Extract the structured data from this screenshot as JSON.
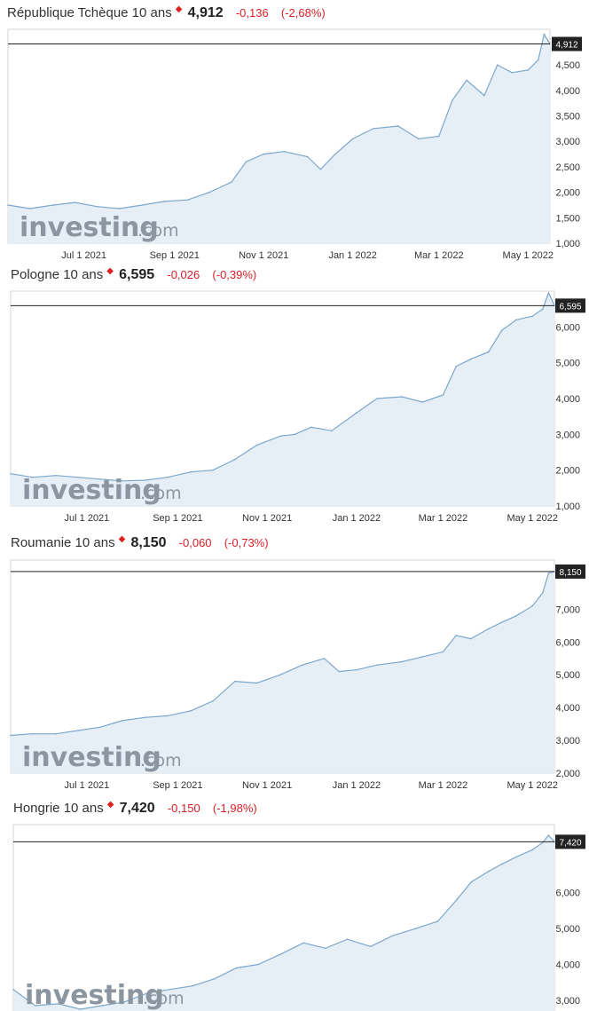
{
  "watermark": {
    "brand": "investing",
    "suffix": ".com"
  },
  "panels": [
    {
      "name": "République Tchèque 10 ans",
      "price": "4,912",
      "change": "-0,136",
      "change_pct": "(-2,68%)",
      "colors": {
        "line": "#7da7cc",
        "fill": "#e6eef6",
        "down": "#d91f26",
        "tag": "#222222"
      },
      "chart_data": {
        "type": "area",
        "x_ticks": [
          "Jul 1 2021",
          "Sep 1 2021",
          "Nov 1 2021",
          "Jan 1 2022",
          "Mar 1 2022",
          "May 1 2022"
        ],
        "y_ticks": [
          "1,000",
          "1,500",
          "2,000",
          "2,500",
          "3,000",
          "3,500",
          "4,000",
          "4,500"
        ],
        "ylim": [
          1.0,
          5.2
        ],
        "last_value": 4.912,
        "last_label": "4,912",
        "series": [
          {
            "x": [
              "2021-05-10",
              "2021-05-25",
              "2021-06-10",
              "2021-06-25",
              "2021-07-10",
              "2021-07-25",
              "2021-08-10",
              "2021-08-25",
              "2021-09-10",
              "2021-09-25",
              "2021-10-10",
              "2021-10-20",
              "2021-11-01",
              "2021-11-15",
              "2021-12-01",
              "2021-12-10",
              "2021-12-20",
              "2022-01-01",
              "2022-01-15",
              "2022-02-01",
              "2022-02-15",
              "2022-03-01",
              "2022-03-10",
              "2022-03-20",
              "2022-04-01",
              "2022-04-10",
              "2022-04-20",
              "2022-05-01",
              "2022-05-08",
              "2022-05-12",
              "2022-05-16"
            ],
            "y": [
              1.75,
              1.68,
              1.75,
              1.8,
              1.72,
              1.68,
              1.75,
              1.82,
              1.85,
              2.0,
              2.2,
              2.6,
              2.75,
              2.8,
              2.7,
              2.45,
              2.75,
              3.05,
              3.25,
              3.3,
              3.05,
              3.1,
              3.8,
              4.2,
              3.9,
              4.5,
              4.35,
              4.4,
              4.6,
              5.1,
              4.912
            ]
          }
        ]
      }
    },
    {
      "name": "Pologne 10 ans",
      "price": "6,595",
      "change": "-0,026",
      "change_pct": "(-0,39%)",
      "colors": {
        "line": "#7da7cc",
        "fill": "#e6eef6",
        "down": "#d91f26",
        "tag": "#222222"
      },
      "chart_data": {
        "type": "area",
        "x_ticks": [
          "Jul 1 2021",
          "Sep 1 2021",
          "Nov 1 2021",
          "Jan 1 2022",
          "Mar 1 2022",
          "May 1 2022"
        ],
        "y_ticks": [
          "1,000",
          "2,000",
          "3,000",
          "4,000",
          "5,000",
          "6,000"
        ],
        "ylim": [
          1.0,
          7.0
        ],
        "last_value": 6.595,
        "last_label": "6,595",
        "series": [
          {
            "x": [
              "2021-05-10",
              "2021-05-25",
              "2021-06-10",
              "2021-06-25",
              "2021-07-10",
              "2021-07-25",
              "2021-08-10",
              "2021-08-25",
              "2021-09-10",
              "2021-09-25",
              "2021-10-10",
              "2021-10-25",
              "2021-11-10",
              "2021-11-20",
              "2021-12-01",
              "2021-12-15",
              "2022-01-01",
              "2022-01-15",
              "2022-02-01",
              "2022-02-15",
              "2022-03-01",
              "2022-03-10",
              "2022-03-20",
              "2022-04-01",
              "2022-04-10",
              "2022-04-20",
              "2022-05-01",
              "2022-05-08",
              "2022-05-12",
              "2022-05-16"
            ],
            "y": [
              1.9,
              1.8,
              1.85,
              1.8,
              1.75,
              1.7,
              1.72,
              1.8,
              1.95,
              2.0,
              2.3,
              2.7,
              2.95,
              3.0,
              3.2,
              3.1,
              3.6,
              4.0,
              4.05,
              3.9,
              4.1,
              4.9,
              5.1,
              5.3,
              5.9,
              6.2,
              6.3,
              6.5,
              6.95,
              6.595
            ]
          }
        ]
      }
    },
    {
      "name": "Roumanie 10 ans",
      "price": "8,150",
      "change": "-0,060",
      "change_pct": "(-0,73%)",
      "colors": {
        "line": "#7da7cc",
        "fill": "#e6eef6",
        "down": "#d91f26",
        "tag": "#222222"
      },
      "chart_data": {
        "type": "area",
        "x_ticks": [
          "Jul 1 2021",
          "Sep 1 2021",
          "Nov 1 2021",
          "Jan 1 2022",
          "Mar 1 2022",
          "May 1 2022"
        ],
        "y_ticks": [
          "2,000",
          "3,000",
          "4,000",
          "5,000",
          "6,000",
          "7,000"
        ],
        "ylim": [
          2.0,
          8.5
        ],
        "last_value": 8.15,
        "last_label": "8,150",
        "series": [
          {
            "x": [
              "2021-05-10",
              "2021-05-25",
              "2021-06-10",
              "2021-06-25",
              "2021-07-10",
              "2021-07-25",
              "2021-08-10",
              "2021-08-25",
              "2021-09-10",
              "2021-09-25",
              "2021-10-10",
              "2021-10-25",
              "2021-11-10",
              "2021-11-25",
              "2021-12-10",
              "2021-12-20",
              "2022-01-01",
              "2022-01-15",
              "2022-02-01",
              "2022-02-15",
              "2022-03-01",
              "2022-03-10",
              "2022-03-20",
              "2022-04-01",
              "2022-04-10",
              "2022-04-20",
              "2022-05-01",
              "2022-05-08",
              "2022-05-12",
              "2022-05-16"
            ],
            "y": [
              3.15,
              3.2,
              3.2,
              3.3,
              3.4,
              3.6,
              3.7,
              3.75,
              3.9,
              4.2,
              4.8,
              4.75,
              5.0,
              5.3,
              5.5,
              5.1,
              5.15,
              5.3,
              5.4,
              5.55,
              5.7,
              6.2,
              6.1,
              6.4,
              6.6,
              6.8,
              7.1,
              7.5,
              8.1,
              8.15
            ]
          }
        ]
      }
    },
    {
      "name": "Hongrie 10 ans",
      "price": "7,420",
      "change": "-0,150",
      "change_pct": "(-1,98%)",
      "colors": {
        "line": "#7da7cc",
        "fill": "#e6eef6",
        "down": "#d91f26",
        "tag": "#222222"
      },
      "chart_data": {
        "type": "area",
        "x_ticks": [],
        "y_ticks": [
          "3,000",
          "4,000",
          "5,000",
          "6,000"
        ],
        "ylim": [
          2.7,
          7.9
        ],
        "last_value": 7.42,
        "last_label": "7,420",
        "series": [
          {
            "x": [
              "2021-05-10",
              "2021-05-25",
              "2021-06-10",
              "2021-06-25",
              "2021-07-10",
              "2021-07-25",
              "2021-08-10",
              "2021-08-25",
              "2021-09-10",
              "2021-09-25",
              "2021-10-10",
              "2021-10-25",
              "2021-11-10",
              "2021-11-25",
              "2021-12-10",
              "2021-12-25",
              "2022-01-10",
              "2022-01-25",
              "2022-02-10",
              "2022-02-25",
              "2022-03-10",
              "2022-03-20",
              "2022-04-01",
              "2022-04-10",
              "2022-04-20",
              "2022-05-01",
              "2022-05-08",
              "2022-05-12",
              "2022-05-16"
            ],
            "y": [
              3.3,
              2.85,
              2.9,
              2.75,
              2.85,
              2.95,
              3.2,
              3.3,
              3.4,
              3.6,
              3.9,
              4.0,
              4.3,
              4.6,
              4.45,
              4.7,
              4.5,
              4.8,
              5.0,
              5.2,
              5.8,
              6.3,
              6.6,
              6.8,
              7.0,
              7.2,
              7.4,
              7.6,
              7.42
            ]
          }
        ]
      }
    }
  ]
}
